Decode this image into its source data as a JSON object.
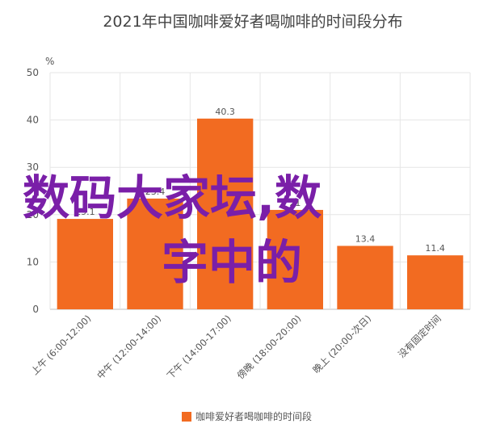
{
  "chart_data": {
    "type": "bar",
    "title": "2021年中国咖啡爱好者喝咖啡的时间段分布",
    "unit": "%",
    "categories": [
      "上午 (6:00-12:00)",
      "中午 (12:00-14:00)",
      "下午 (14:00-17:00)",
      "傍晚 (18:00-20:00)",
      "晚上 (20:00-次日)",
      "没有固定时间"
    ],
    "series": [
      {
        "name": "咖啡爱好者喝咖啡的时间段",
        "values": [
          19.1,
          23.4,
          40.3,
          21.0,
          13.4,
          11.4
        ]
      }
    ],
    "data_labels": [
      "19.1",
      "23.4",
      "40.3",
      "21",
      "13.4",
      "11.4"
    ],
    "yticks": [
      "0",
      "10",
      "20",
      "30",
      "40",
      "50"
    ],
    "ylim": [
      0,
      50
    ],
    "grid": true,
    "legend": "bottom",
    "bar_color": "#f26b21"
  },
  "watermark": {
    "line1": "数码大家坛,数",
    "line2": "字中的"
  }
}
